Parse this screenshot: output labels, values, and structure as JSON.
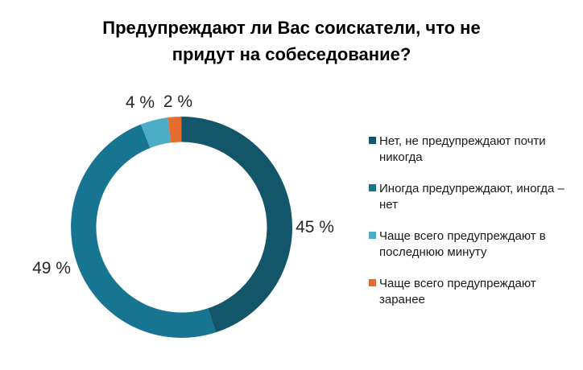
{
  "title": {
    "lines": [
      "Предупреждают ли Вас соискатели, что не",
      "придут на собеседование?"
    ]
  },
  "chart_data": {
    "type": "pie",
    "subtype": "donut",
    "title": "Предупреждают ли Вас соискатели, что не придут на собеседование?",
    "unit": "%",
    "legend_position": "right",
    "start_angle_deg": 0,
    "direction": "clockwise",
    "slices": [
      {
        "label": "Нет, не предупреждают почти никогда",
        "value": 45,
        "display": "45 %",
        "color": "#135569",
        "legend_lines": [
          "Нет, не предупреждают почти",
          "никогда"
        ]
      },
      {
        "label": "Иногда предупреждают, иногда – нет",
        "value": 49,
        "display": "49 %",
        "color": "#177592",
        "legend_lines": [
          "Иногда предупреждают, иногда –",
          "нет"
        ]
      },
      {
        "label": "Чаще всего предупреждают в последнюю минуту",
        "value": 4,
        "display": "4 %",
        "color": "#4BACC6",
        "legend_lines": [
          "Чаще всего предупреждают в",
          "последнюю минуту"
        ]
      },
      {
        "label": "Чаще всего предупреждают заранее",
        "value": 2,
        "display": "2 %",
        "color": "#E66C2D",
        "legend_lines": [
          "Чаще всего предупреждают",
          "заранее"
        ]
      }
    ]
  }
}
